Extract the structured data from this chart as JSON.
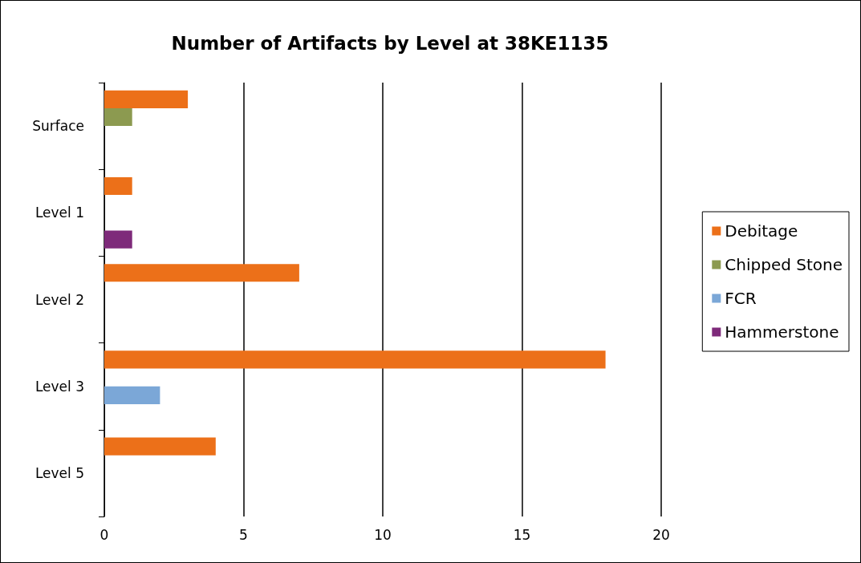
{
  "chart_data": {
    "type": "bar",
    "orientation": "horizontal",
    "title": "Number of Artifacts by Level at 38KE1135",
    "categories": [
      "Surface",
      "Level 1",
      "Level 2",
      "Level 3",
      "Level 5"
    ],
    "series": [
      {
        "name": "Debitage",
        "color": "#ec7019",
        "values": [
          3,
          1,
          7,
          18,
          4
        ]
      },
      {
        "name": "Chipped Stone",
        "color": "#8c9a50",
        "values": [
          1,
          null,
          null,
          null,
          null
        ]
      },
      {
        "name": "FCR",
        "color": "#7ba7d7",
        "values": [
          null,
          null,
          null,
          2,
          null
        ]
      },
      {
        "name": "Hammerstone",
        "color": "#7e2a7a",
        "values": [
          null,
          1,
          null,
          null,
          null
        ]
      }
    ],
    "xlim": [
      0,
      20
    ],
    "xticks": [
      0,
      5,
      10,
      15,
      20
    ],
    "grid": "x",
    "legend": "right"
  }
}
